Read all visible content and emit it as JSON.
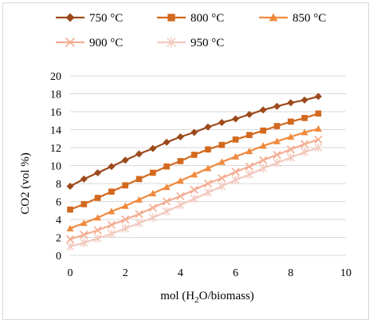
{
  "chart_data": {
    "type": "line",
    "title": "",
    "xlabel": "mol (H",
    "xlabel_sub": "2",
    "xlabel_rest": "O/biomass)",
    "ylabel": "CO2 (vol %)",
    "xlim": [
      0,
      10
    ],
    "ylim": [
      0,
      20
    ],
    "x_ticks": [
      "0",
      "2",
      "4",
      "6",
      "8",
      "10"
    ],
    "y_ticks": [
      "0",
      "2",
      "4",
      "6",
      "8",
      "10",
      "12",
      "14",
      "16",
      "18",
      "20"
    ],
    "grid": true,
    "legend_position": "top",
    "x": [
      0,
      0.5,
      1,
      1.5,
      2,
      2.5,
      3,
      3.5,
      4,
      4.5,
      5,
      5.5,
      6,
      6.5,
      7,
      7.5,
      8,
      8.5,
      9
    ],
    "series": [
      {
        "name": "750 °C",
        "marker": "diamond",
        "color": "#9c4a1c",
        "values": [
          7.7,
          8.5,
          9.2,
          9.9,
          10.6,
          11.3,
          11.9,
          12.6,
          13.2,
          13.7,
          14.3,
          14.8,
          15.2,
          15.7,
          16.2,
          16.6,
          17.0,
          17.3,
          17.7
        ]
      },
      {
        "name": "800 °C",
        "marker": "square",
        "color": "#d2691e",
        "values": [
          5.1,
          5.7,
          6.4,
          7.1,
          7.8,
          8.5,
          9.2,
          9.9,
          10.5,
          11.2,
          11.8,
          12.3,
          12.9,
          13.4,
          13.9,
          14.4,
          14.9,
          15.3,
          15.8
        ]
      },
      {
        "name": "850 °C",
        "marker": "triangle",
        "color": "#f08a3e",
        "values": [
          3.0,
          3.6,
          4.2,
          4.9,
          5.5,
          6.2,
          6.9,
          7.6,
          8.3,
          9.0,
          9.7,
          10.4,
          11.0,
          11.6,
          12.2,
          12.7,
          13.2,
          13.7,
          14.1
        ]
      },
      {
        "name": "900 °C",
        "marker": "x",
        "color": "#f4ad93",
        "values": [
          1.8,
          2.3,
          2.8,
          3.4,
          4.0,
          4.6,
          5.3,
          6.0,
          6.6,
          7.3,
          8.0,
          8.6,
          9.3,
          9.9,
          10.6,
          11.2,
          11.8,
          12.4,
          12.9
        ]
      },
      {
        "name": "950 °C",
        "marker": "star",
        "color": "#f2c9be",
        "values": [
          1.0,
          1.4,
          1.9,
          2.4,
          3.0,
          3.6,
          4.2,
          4.9,
          5.6,
          6.3,
          7.0,
          7.7,
          8.4,
          9.0,
          9.7,
          10.3,
          10.9,
          11.5,
          12.0
        ]
      }
    ],
    "colors": {
      "grid": "#d9d9d9",
      "axis_text": "#000000"
    }
  }
}
